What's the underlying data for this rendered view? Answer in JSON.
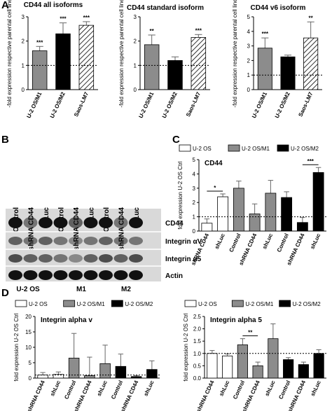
{
  "panel_labels": [
    "A",
    "B",
    "C",
    "D"
  ],
  "blot": {
    "lanes": [
      "Control",
      "shRNA CD44",
      "shLuc",
      "Control",
      "shRNA CD44",
      "shLuc",
      "Control",
      "shRNA CD44",
      "shLuc"
    ],
    "bands": [
      "CD44",
      "Integrin αV",
      "Integrin α5",
      "Actin"
    ],
    "groups": [
      "U-2 OS",
      "M1",
      "M2"
    ]
  },
  "chart_data": [
    {
      "type": "bar",
      "title": "CD44 all isoforms",
      "ylabel": "-fold expression respective parental cell line",
      "categories": [
        "U-2 OS/M1",
        "U-2 OS/M2",
        "Saos-LM7"
      ],
      "values": [
        1.6,
        2.3,
        2.65
      ],
      "errors": [
        0.18,
        0.45,
        0.15
      ],
      "colors": [
        "#8c8c8c",
        "#000000",
        "#ffffff"
      ],
      "hatch": [
        false,
        false,
        true
      ],
      "annotations": [
        "***",
        "***",
        "***"
      ],
      "ylim": [
        0,
        3
      ],
      "yticks": [
        0,
        1,
        2,
        3
      ],
      "reference_line": 1
    },
    {
      "type": "bar",
      "title": "CD44 standard isoform",
      "ylabel": "-fold expression respective parental cell line",
      "categories": [
        "U-2 OS/M1",
        "U-2 OS/M2",
        "Saos-LM7"
      ],
      "values": [
        1.85,
        1.2,
        2.15
      ],
      "errors": [
        0.4,
        0.15,
        0.12
      ],
      "colors": [
        "#8c8c8c",
        "#000000",
        "#ffffff"
      ],
      "hatch": [
        false,
        false,
        true
      ],
      "annotations": [
        "**",
        null,
        "***"
      ],
      "ylim": [
        0,
        3
      ],
      "yticks": [
        0,
        1,
        2,
        3
      ],
      "reference_line": 1
    },
    {
      "type": "bar",
      "title": "CD44 v6 isoform",
      "ylabel": "-fold expression respective parental cell line",
      "categories": [
        "U-2 OS/M1",
        "U-2 OS/M2",
        "Saos-LM7"
      ],
      "values": [
        2.85,
        2.25,
        3.55
      ],
      "errors": [
        0.7,
        0.12,
        1.1
      ],
      "colors": [
        "#8c8c8c",
        "#000000",
        "#ffffff"
      ],
      "hatch": [
        false,
        false,
        true
      ],
      "annotations": [
        "***",
        null,
        "**"
      ],
      "ylim": [
        0,
        5
      ],
      "yticks": [
        0,
        1,
        2,
        3,
        4,
        5
      ],
      "reference_line": 1
    },
    {
      "type": "grouped-bar",
      "title": "CD44",
      "ylabel": "fold expression U-2  OS Ctrl",
      "legend": "top",
      "categories": [
        "shRNA CD44",
        "shLuc",
        "Control",
        "shRNA CD44",
        "shLuc",
        "Control",
        "shRNA CD44",
        "shLuc"
      ],
      "series": [
        {
          "name": "U-2  OS",
          "color": "#ffffff",
          "values": [
            0.55,
            2.4,
            null,
            null,
            null,
            null,
            null,
            null
          ],
          "errors": [
            0.3,
            0.2,
            null,
            null,
            null,
            null,
            null,
            null
          ]
        },
        {
          "name": "U-2  OS/M1",
          "color": "#8c8c8c",
          "values": [
            null,
            null,
            3.0,
            1.2,
            2.65,
            null,
            null,
            null
          ],
          "errors": [
            null,
            null,
            0.5,
            0.7,
            0.9,
            null,
            null,
            null
          ]
        },
        {
          "name": "U-2  OS/M2",
          "color": "#000000",
          "values": [
            null,
            null,
            null,
            null,
            null,
            2.35,
            0.6,
            4.1
          ],
          "errors": [
            null,
            null,
            null,
            null,
            null,
            0.4,
            0.35,
            0.35
          ]
        }
      ],
      "annotations": [
        "*",
        "***"
      ],
      "ylim": [
        0,
        5
      ],
      "yticks": [
        0,
        1,
        2,
        3,
        4,
        5
      ],
      "reference_line": 1
    },
    {
      "type": "grouped-bar",
      "title": "Integrin alpha v",
      "ylabel": "fold expression U-2  OS Ctrl",
      "legend": "top",
      "categories": [
        "shRNA CD44",
        "shLuc",
        "Control",
        "shRNA CD44",
        "shLuc",
        "Control",
        "shRNA CD44",
        "shLuc"
      ],
      "series": [
        {
          "name": "U-2  OS",
          "color": "#ffffff",
          "values": [
            1.0,
            1.2,
            null,
            null,
            null,
            null,
            null,
            null
          ],
          "errors": [
            0.8,
            0.8,
            null,
            null,
            null,
            null,
            null,
            null
          ]
        },
        {
          "name": "U-2  OS/M1",
          "color": "#8c8c8c",
          "values": [
            null,
            null,
            6.5,
            0.8,
            4.7,
            null,
            null,
            null
          ],
          "errors": [
            null,
            null,
            8,
            6,
            6,
            null,
            null,
            null
          ]
        },
        {
          "name": "U-2  OS/M2",
          "color": "#000000",
          "values": [
            null,
            null,
            null,
            null,
            null,
            3.8,
            0.5,
            2.8
          ],
          "errors": [
            null,
            null,
            null,
            null,
            null,
            4,
            0.3,
            2.8
          ]
        }
      ],
      "annotations": [],
      "ylim": [
        0,
        20
      ],
      "yticks": [
        0,
        5,
        10,
        15,
        20
      ],
      "reference_line": 1
    },
    {
      "type": "grouped-bar",
      "title": "Integrin alpha 5",
      "ylabel": "fold expression U-2  OS Ctrl",
      "legend": "top",
      "categories": [
        "shRNA CD44",
        "shLuc",
        "Control",
        "shRNA CD44",
        "shLuc",
        "Control",
        "shRNA CD44",
        "shLuc"
      ],
      "series": [
        {
          "name": "U-2  OS",
          "color": "#ffffff",
          "values": [
            1.0,
            0.9,
            null,
            null,
            null,
            null,
            null,
            null
          ],
          "errors": [
            0.12,
            0.08,
            null,
            null,
            null,
            null,
            null,
            null
          ]
        },
        {
          "name": "U-2  OS/M1",
          "color": "#8c8c8c",
          "values": [
            null,
            null,
            1.35,
            0.5,
            1.6,
            null,
            null,
            null
          ],
          "errors": [
            null,
            null,
            0.25,
            0.15,
            0.6,
            null,
            null,
            null
          ]
        },
        {
          "name": "U-2  OS/M2",
          "color": "#000000",
          "values": [
            null,
            null,
            null,
            null,
            null,
            0.75,
            0.55,
            1.0
          ],
          "errors": [
            null,
            null,
            null,
            null,
            null,
            0.08,
            0.1,
            0.15
          ]
        }
      ],
      "annotations": [
        "**"
      ],
      "ylim": [
        0,
        2.5
      ],
      "yticks": [
        {
          "value": 0,
          "label": "0.0"
        },
        0.5,
        {
          "value": 1,
          "label": "1.0"
        },
        1.5,
        {
          "value": 2,
          "label": "2.0"
        },
        2.5
      ],
      "reference_line": 1
    }
  ]
}
